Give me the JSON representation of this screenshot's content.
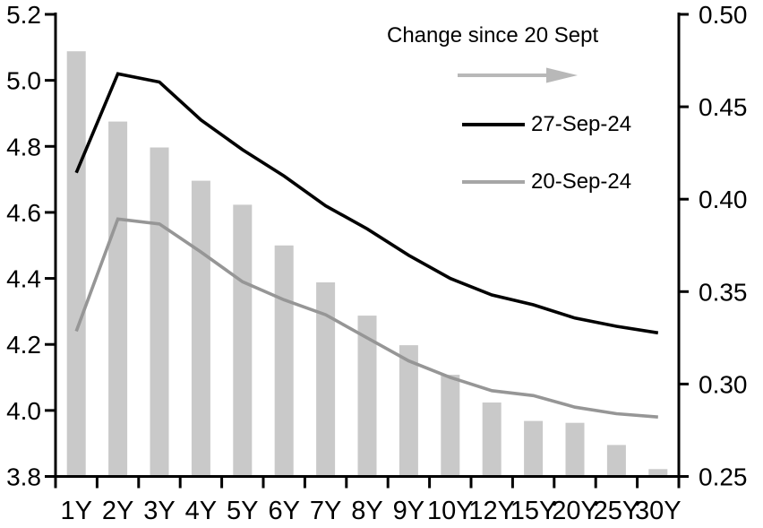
{
  "legend": {
    "change_label": "Change since 20 Sept",
    "series1_label": "27-Sep-24",
    "series2_label": "20-Sep-24"
  },
  "colors": {
    "bar_fill": "#c9c9c9",
    "line_27sep": "#000000",
    "line_20sep": "#969696",
    "legend_gray_sample": "#a6a6a6",
    "arrow_gray": "#b8b8b8",
    "axis": "#000000"
  },
  "chart_data": {
    "type": "bar+line combo",
    "title": "",
    "categories": [
      "1Y",
      "2Y",
      "3Y",
      "4Y",
      "5Y",
      "6Y",
      "7Y",
      "8Y",
      "9Y",
      "10Y",
      "12Y",
      "15Y",
      "20Y",
      "25Y",
      "30Y"
    ],
    "series": [
      {
        "name": "Change since 20 Sept",
        "type": "bar",
        "axis": "right",
        "color": "#c9c9c9",
        "values": [
          0.48,
          0.442,
          0.428,
          0.41,
          0.397,
          0.375,
          0.355,
          0.337,
          0.321,
          0.305,
          0.29,
          0.28,
          0.279,
          0.267,
          0.254
        ]
      },
      {
        "name": "27-Sep-24",
        "type": "line",
        "axis": "left",
        "color": "#000000",
        "values": [
          4.72,
          5.02,
          4.995,
          4.88,
          4.79,
          4.71,
          4.62,
          4.55,
          4.47,
          4.4,
          4.35,
          4.32,
          4.28,
          4.255,
          4.235
        ]
      },
      {
        "name": "20-Sep-24",
        "type": "line",
        "axis": "left",
        "color": "#969696",
        "values": [
          4.24,
          4.58,
          4.565,
          4.48,
          4.39,
          4.335,
          4.29,
          4.22,
          4.15,
          4.1,
          4.06,
          4.045,
          4.01,
          3.99,
          3.98
        ]
      }
    ],
    "left_axis": {
      "min": 3.8,
      "max": 5.2,
      "tick_labels": [
        "5.2",
        "5.0",
        "4.8",
        "4.6",
        "4.4",
        "4.2",
        "4.0",
        "3.8"
      ]
    },
    "right_axis": {
      "min": 0.25,
      "max": 0.5,
      "tick_labels": [
        "0.50",
        "0.45",
        "0.40",
        "0.35",
        "0.30",
        "0.25"
      ]
    },
    "xlabel": "",
    "ylabel": "",
    "grid": false,
    "legend_position": "top-center-inside"
  }
}
